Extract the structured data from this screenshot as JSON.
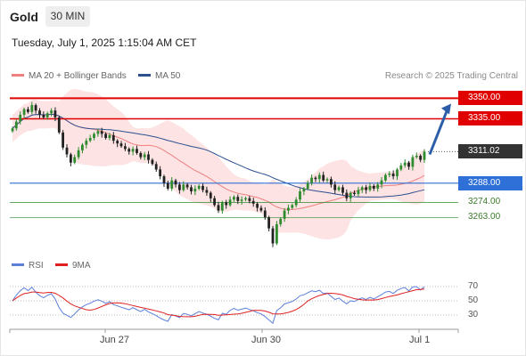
{
  "header": {
    "title": "Gold",
    "timeframe": "30 MIN",
    "datetime": "Tuesday, July 1, 2025 1:15:04 AM CET"
  },
  "legend": {
    "bb_label": "MA 20 + Bollinger Bands",
    "ma50_label": "MA 50",
    "rsi_label": "RSI",
    "rsi_ma_label": "9MA",
    "credit": "Research © 2025 Trading Central"
  },
  "colors": {
    "resistance": "#e00000",
    "support_blue": "#2e6fd8",
    "support_green": "#2e8b2e",
    "bb": "#f08080",
    "ma50": "#2c4f8f",
    "up": "#2e8b2e",
    "down": "#222222",
    "rsi": "#5b7fd9",
    "rsi_ma": "#e02020",
    "forecast_arrow": "#2d5da8",
    "current": "#333333"
  },
  "chart_data": [
    {
      "type": "candlestick",
      "title": "Gold 30 MIN",
      "x_ticks": [
        "Jun 27",
        "Jun 30",
        "Jul 1"
      ],
      "ylim": [
        3232,
        3360
      ],
      "price_labels": {
        "resistance_2": "3350.00",
        "resistance_1": "3335.00",
        "current": "3311.02",
        "pivot": "3288.00",
        "support_1": "3274.00",
        "support_2": "3263.00"
      },
      "levels": {
        "resistance_2": 3350,
        "resistance_1": 3335,
        "current": 3311.02,
        "pivot": 3288,
        "support_1": 3274,
        "support_2": 3263
      },
      "forecast": {
        "from": 3309,
        "to": 3346
      },
      "closes": [
        3328,
        3333,
        3338,
        3342,
        3340,
        3345,
        3341,
        3338,
        3336,
        3339,
        3341,
        3336,
        3325,
        3314,
        3309,
        3303,
        3307,
        3312,
        3316,
        3319,
        3321,
        3324,
        3326,
        3324,
        3321,
        3323,
        3319,
        3317,
        3315,
        3313,
        3311,
        3313,
        3310,
        3307,
        3309,
        3305,
        3302,
        3298,
        3293,
        3288,
        3284,
        3290,
        3287,
        3283,
        3287,
        3285,
        3282,
        3284,
        3286,
        3283,
        3281,
        3277,
        3272,
        3268,
        3274,
        3272,
        3276,
        3278,
        3275,
        3276,
        3277,
        3275,
        3273,
        3270,
        3268,
        3263,
        3255,
        3244,
        3258,
        3262,
        3268,
        3270,
        3272,
        3276,
        3282,
        3284,
        3288,
        3292,
        3291,
        3294,
        3290,
        3291,
        3287,
        3283,
        3285,
        3281,
        3277,
        3281,
        3280,
        3283,
        3285,
        3283,
        3286,
        3284,
        3287,
        3290,
        3294,
        3295,
        3293,
        3298,
        3301,
        3303,
        3300,
        3307,
        3308,
        3305,
        3311
      ]
    },
    {
      "type": "line",
      "title": "RSI",
      "series": [
        {
          "name": "RSI"
        },
        {
          "name": "9MA"
        }
      ],
      "y_ticks": [
        "70",
        "50",
        "30"
      ],
      "ylim": [
        15,
        80
      ],
      "levels": [
        70,
        50,
        30
      ]
    }
  ]
}
